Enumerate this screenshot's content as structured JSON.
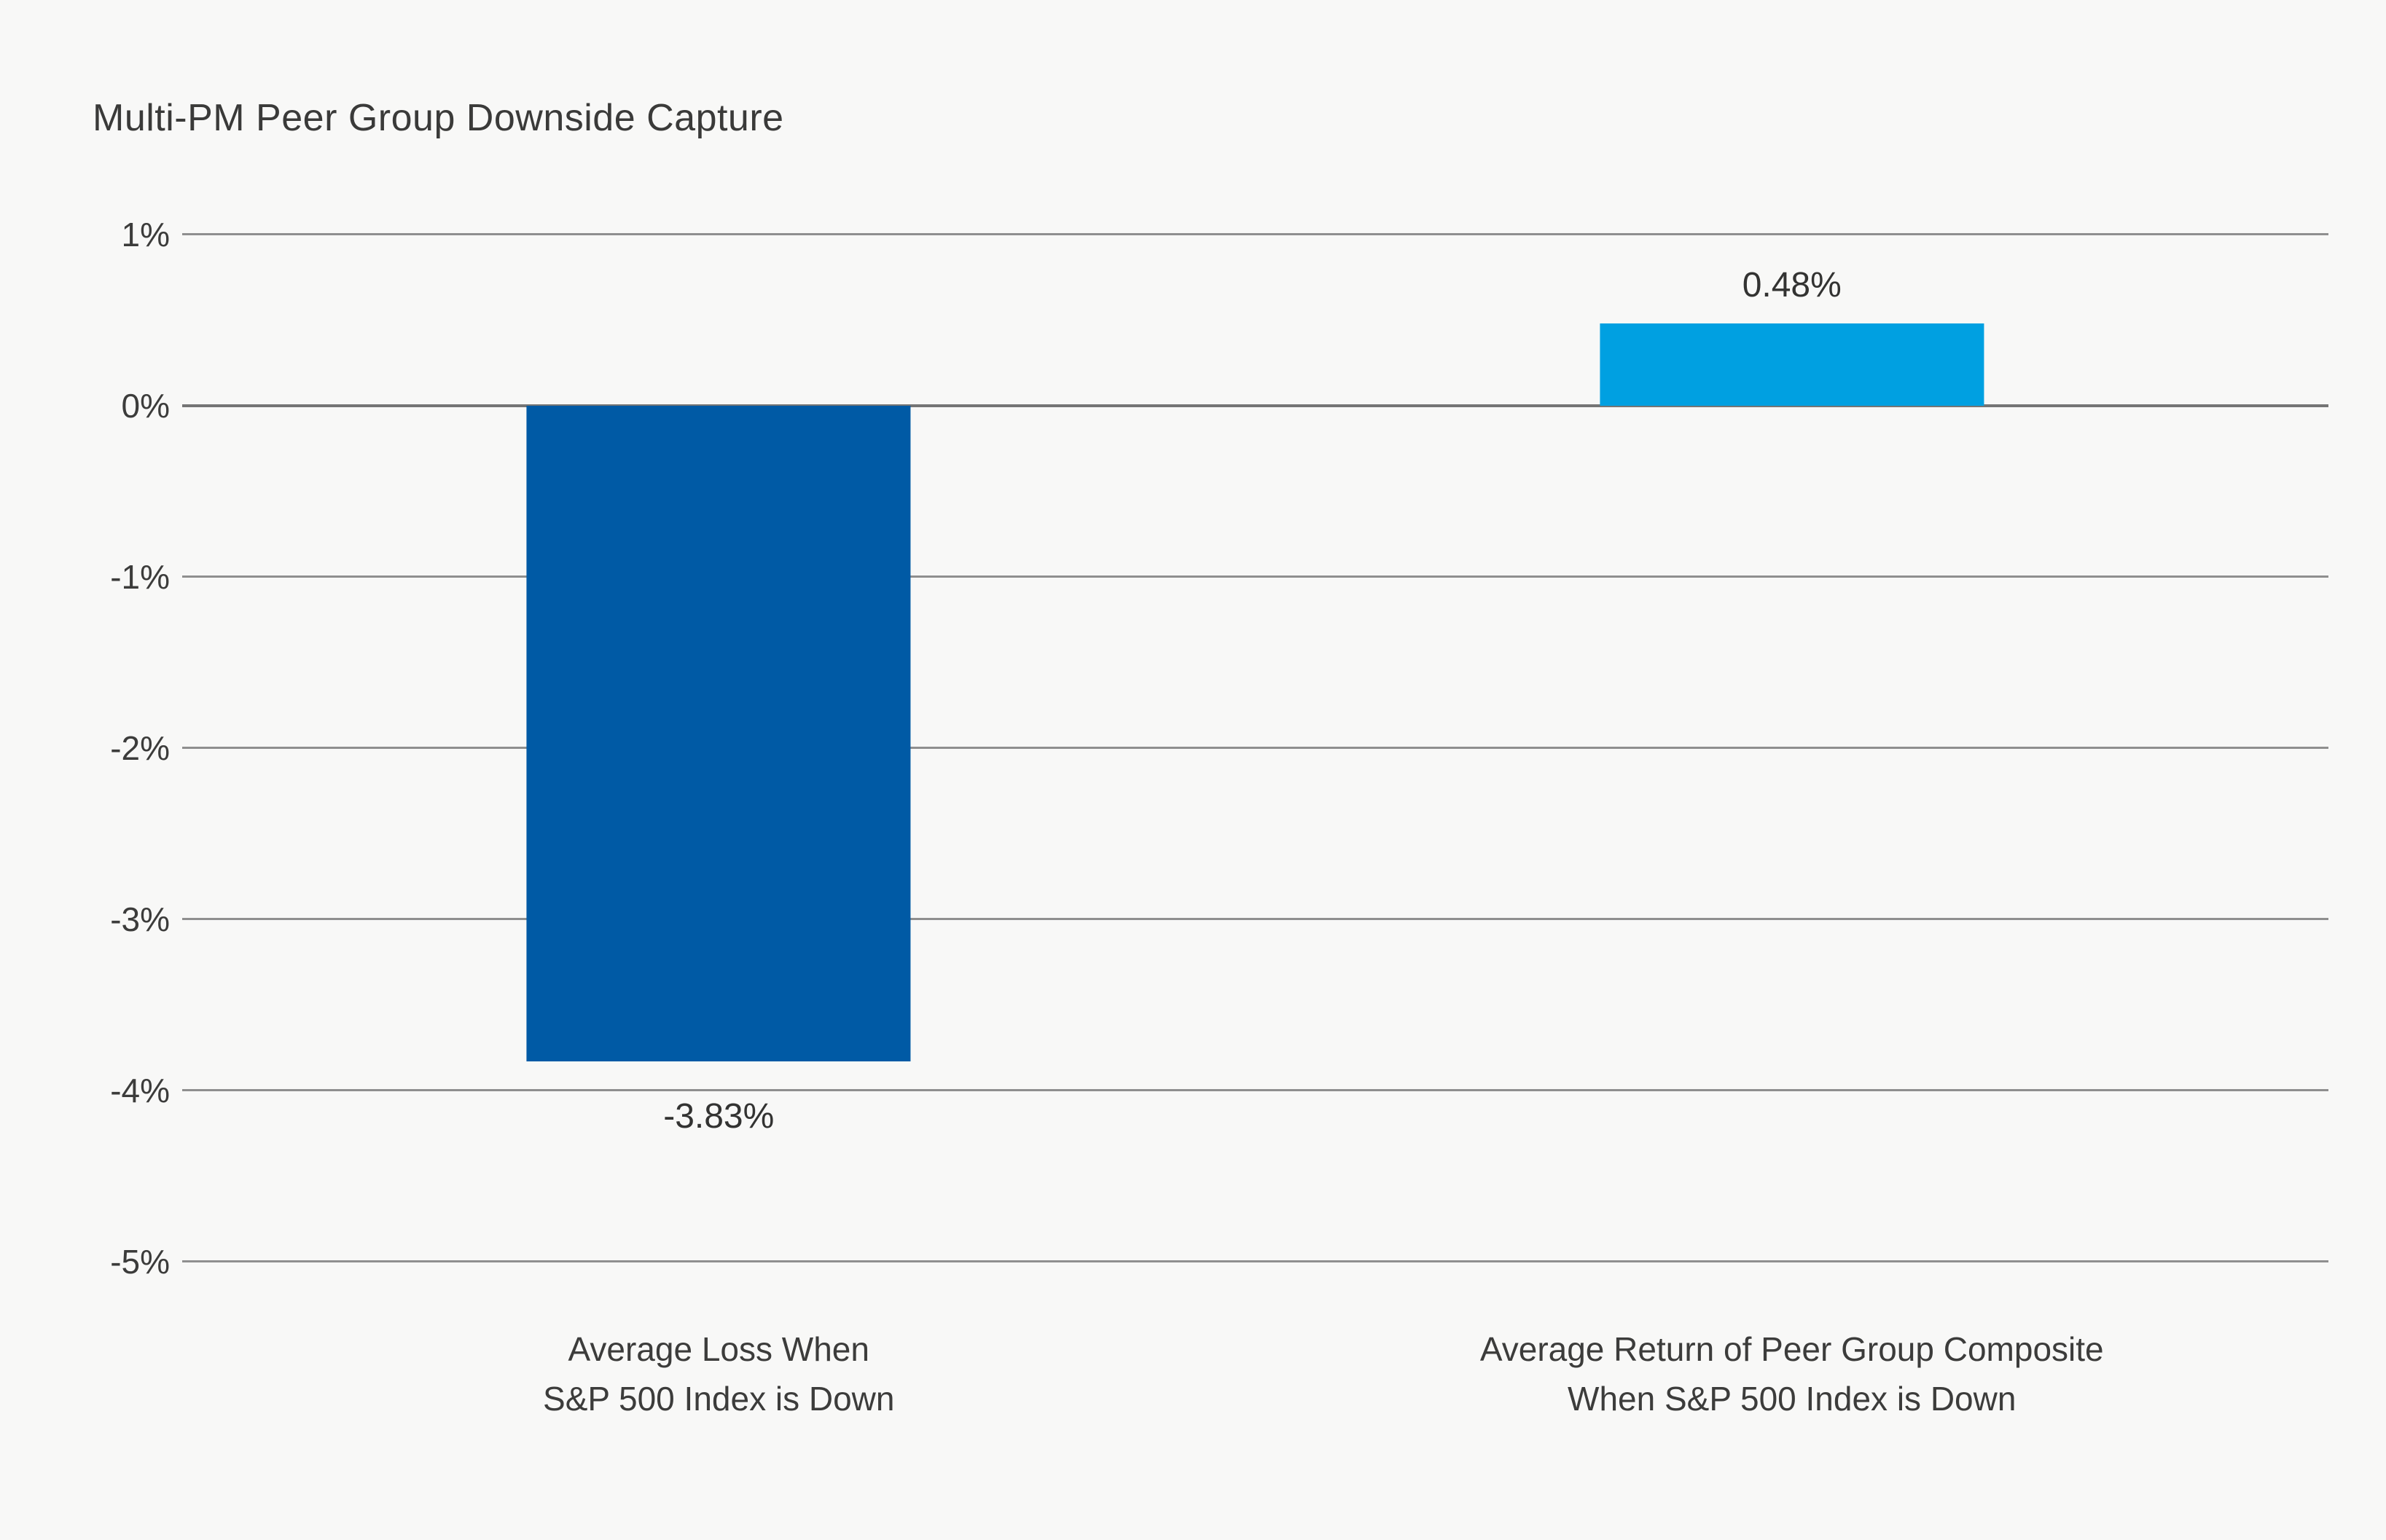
{
  "page": {
    "background_color": "#f8f8f7",
    "text_color": "#3c3c3b",
    "grid_color": "#8f8f8f",
    "zero_line_color": "#757575"
  },
  "chart_data": {
    "type": "bar",
    "title": "Multi-PM Peer Group Downside Capture",
    "categories": [
      "Average Loss When\nS&P 500 Index is Down",
      "Average Return of Peer Group Composite\nWhen S&P 500 Index is Down"
    ],
    "values": [
      -3.83,
      0.48
    ],
    "value_labels": [
      "-3.83%",
      "0.48%"
    ],
    "bar_colors": [
      "#005aa5",
      "#00a0e1"
    ],
    "xlabel": "",
    "ylabel": "",
    "ylim": [
      -5,
      1
    ],
    "yticks": [
      1,
      0,
      -1,
      -2,
      -3,
      -4,
      -5
    ],
    "ytick_labels": [
      "1%",
      "0%",
      "-1%",
      "-2%",
      "-3%",
      "-4%",
      "-5%"
    ],
    "grid": "horizontal",
    "legend": "none",
    "bar_width_fraction": 0.179
  }
}
